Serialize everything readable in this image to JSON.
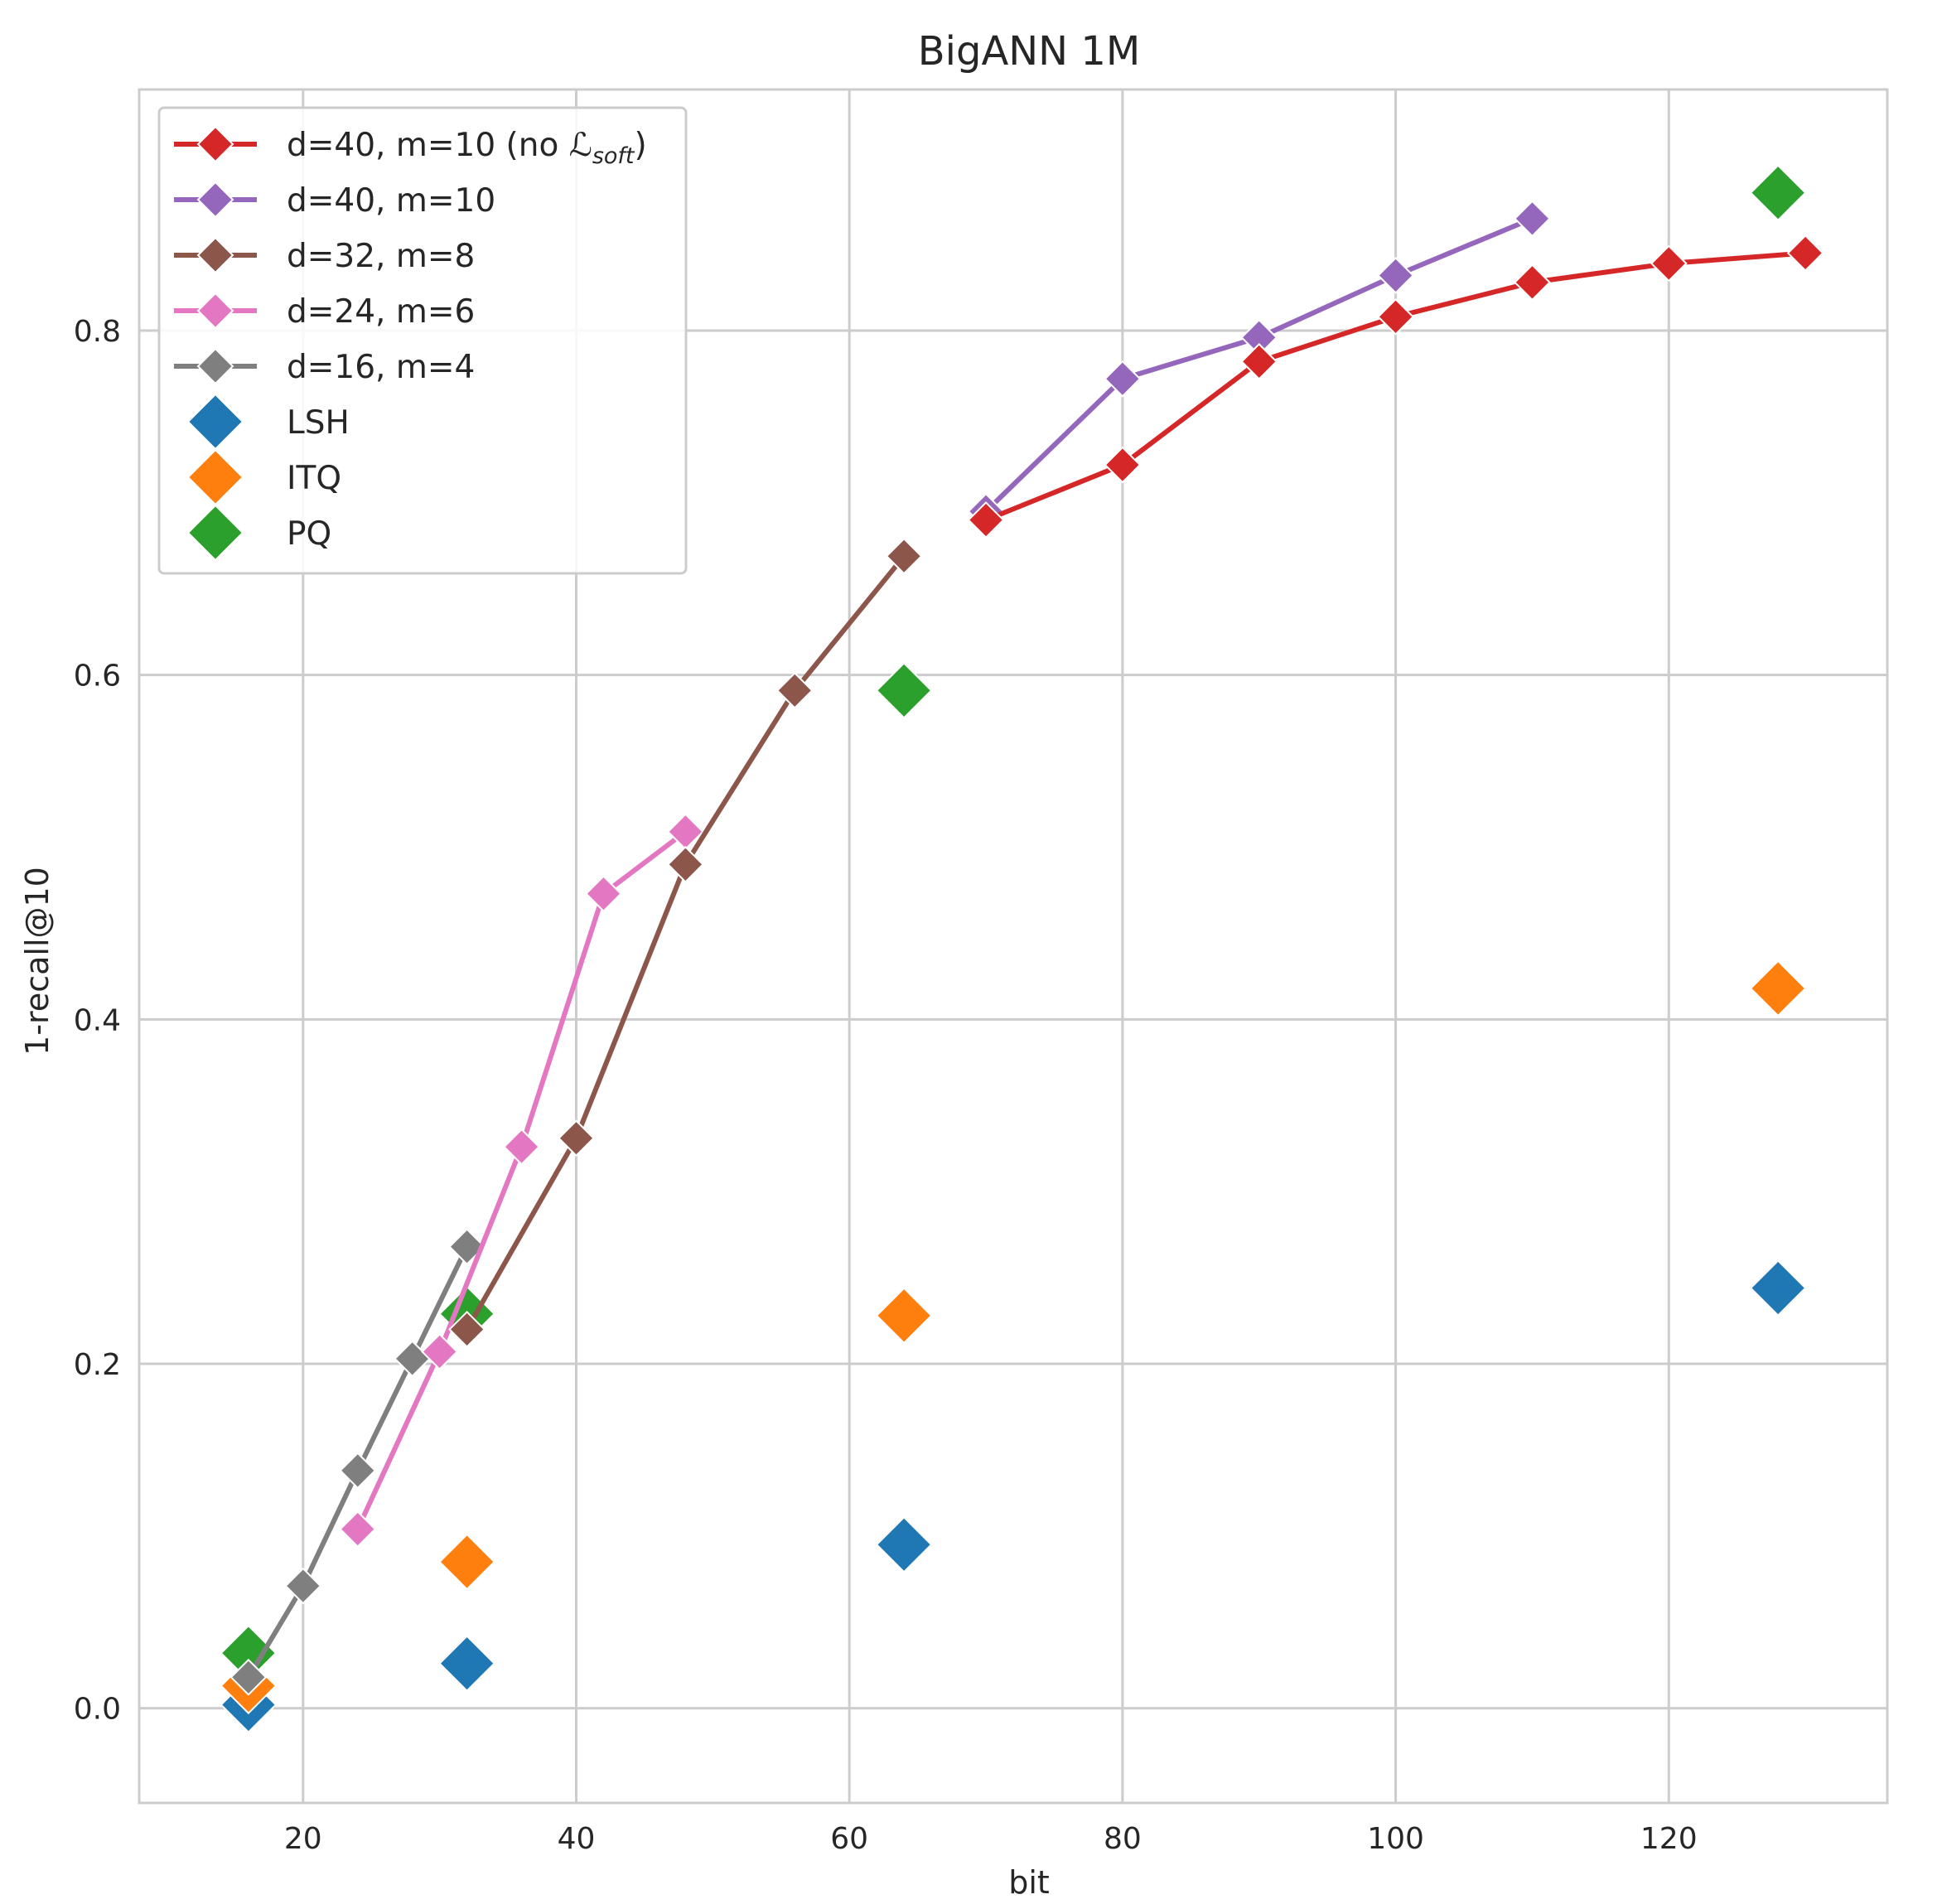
{
  "chart_data": {
    "type": "line",
    "title": "BigANN 1M",
    "xlabel": "bit",
    "ylabel": "1-recall@10",
    "xlim": [
      8,
      136
    ],
    "ylim": [
      -0.055,
      0.94
    ],
    "xticks": [
      20,
      40,
      60,
      80,
      100,
      120
    ],
    "yticks": [
      0.0,
      0.2,
      0.4,
      0.6,
      0.8
    ],
    "xtick_labels": [
      "20",
      "40",
      "60",
      "80",
      "100",
      "120"
    ],
    "ytick_labels": [
      "0.0",
      "0.2",
      "0.4",
      "0.6",
      "0.8"
    ],
    "grid": true,
    "legend_position": "top-left",
    "series": [
      {
        "name": "d=40, m=10 (no ℒsoft)",
        "name_main": "d=40, m=10 (no ",
        "name_symbol": "ℒ",
        "name_sub": "soft",
        "name_end": ")",
        "kind": "line",
        "color": "#d62728",
        "x": [
          70,
          80,
          90,
          100,
          110,
          120,
          130
        ],
        "y": [
          0.69,
          0.722,
          0.782,
          0.808,
          0.828,
          0.839,
          0.845
        ]
      },
      {
        "name": "d=40, m=10",
        "kind": "line",
        "color": "#9467bd",
        "x": [
          70,
          80,
          90,
          100,
          110
        ],
        "y": [
          0.695,
          0.772,
          0.796,
          0.832,
          0.865
        ]
      },
      {
        "name": "d=32, m=8",
        "kind": "line",
        "color": "#8c564b",
        "x": [
          32,
          40,
          48,
          56,
          64
        ],
        "y": [
          0.22,
          0.331,
          0.49,
          0.591,
          0.669
        ]
      },
      {
        "name": "d=24, m=6",
        "kind": "line",
        "color": "#e377c2",
        "x": [
          24,
          30,
          36,
          42,
          48
        ],
        "y": [
          0.104,
          0.207,
          0.326,
          0.473,
          0.509
        ]
      },
      {
        "name": "d=16, m=4",
        "kind": "line",
        "color": "#7f7f7f",
        "x": [
          16,
          20,
          24,
          28,
          32
        ],
        "y": [
          0.018,
          0.071,
          0.138,
          0.203,
          0.268
        ]
      },
      {
        "name": "LSH",
        "kind": "scatter",
        "color": "#1f77b4",
        "x": [
          16,
          32,
          64,
          128
        ],
        "y": [
          0.002,
          0.026,
          0.095,
          0.244
        ]
      },
      {
        "name": "ITQ",
        "kind": "scatter",
        "color": "#ff7f0e",
        "x": [
          16,
          32,
          64,
          128
        ],
        "y": [
          0.013,
          0.085,
          0.228,
          0.418
        ]
      },
      {
        "name": "PQ",
        "kind": "scatter",
        "color": "#2ca02c",
        "x": [
          16,
          32,
          64,
          128
        ],
        "y": [
          0.032,
          0.229,
          0.591,
          0.88
        ]
      }
    ]
  }
}
